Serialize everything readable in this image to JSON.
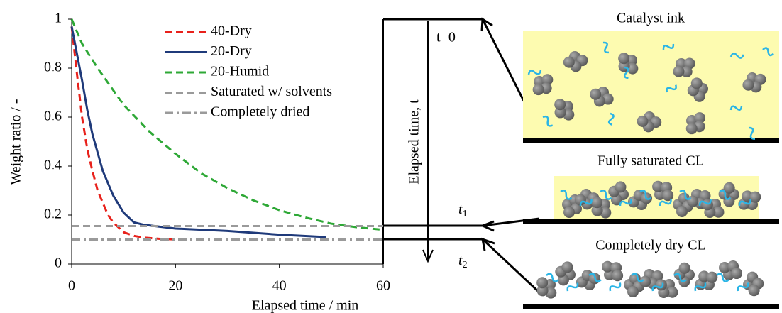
{
  "chart_data": {
    "type": "line",
    "xlabel": "Elapsed time / min",
    "ylabel": "Weight ratio / -",
    "xlim": [
      0,
      60
    ],
    "ylim": [
      0,
      1
    ],
    "xticks": [
      0,
      20,
      40,
      60
    ],
    "yticks": [
      0,
      0.2,
      0.4,
      0.6,
      0.8,
      1
    ],
    "legend": "upper center",
    "series": [
      {
        "name": "40-Dry",
        "color": "#e8211b",
        "dash": "dashed",
        "x": [
          0,
          1,
          2,
          3,
          4,
          5,
          6,
          7,
          8,
          10,
          12,
          14,
          17,
          21
        ],
        "values": [
          0.97,
          0.78,
          0.6,
          0.47,
          0.38,
          0.3,
          0.25,
          0.2,
          0.17,
          0.13,
          0.115,
          0.108,
          0.103,
          0.1
        ]
      },
      {
        "name": "20-Dry",
        "color": "#1f3a7a",
        "dash": "solid",
        "x": [
          0,
          1,
          2,
          3,
          4,
          6,
          8,
          10,
          12,
          14,
          20,
          30,
          40,
          49
        ],
        "values": [
          0.97,
          0.86,
          0.75,
          0.63,
          0.53,
          0.38,
          0.28,
          0.21,
          0.17,
          0.16,
          0.145,
          0.135,
          0.12,
          0.11
        ]
      },
      {
        "name": "20-Humid",
        "color": "#2ea836",
        "dash": "dashed",
        "x": [
          0,
          2,
          5,
          10,
          15,
          20,
          25,
          30,
          35,
          40,
          45,
          50,
          55,
          60
        ],
        "values": [
          1,
          0.9,
          0.8,
          0.65,
          0.54,
          0.45,
          0.37,
          0.31,
          0.26,
          0.22,
          0.19,
          0.165,
          0.15,
          0.14
        ]
      },
      {
        "name": "Saturated w/ solvents",
        "color": "#9a9a9a",
        "dash": "dashed",
        "x": [
          0,
          60
        ],
        "values": [
          0.155,
          0.155
        ]
      },
      {
        "name": "Completely dried",
        "color": "#9a9a9a",
        "dash": "dashdot",
        "x": [
          0,
          60
        ],
        "values": [
          0.1,
          0.1
        ]
      }
    ]
  },
  "diagram": {
    "time_axis": "Elapsed time, t",
    "t0": "t=0",
    "t1": {
      "t": "t",
      "sub": "1"
    },
    "t2": {
      "t": "t",
      "sub": "2"
    },
    "stages": [
      "Catalyst ink",
      "Fully saturated CL",
      "Completely dry CL"
    ]
  }
}
